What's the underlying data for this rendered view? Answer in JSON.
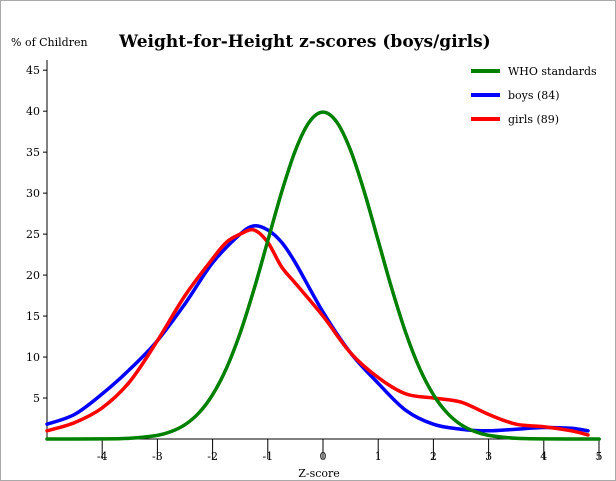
{
  "chart_data": {
    "type": "line",
    "title": "Weight-for-Height z-scores (boys/girls)",
    "ylabel": "% of Children",
    "xlabel": "Z-score",
    "xlim": [
      -5,
      5
    ],
    "ylim": [
      0,
      46
    ],
    "x_ticks": [
      -4,
      -3,
      -2,
      -1,
      0,
      1,
      2,
      3,
      4,
      5
    ],
    "y_ticks": [
      5,
      10,
      15,
      20,
      25,
      30,
      35,
      40,
      45
    ],
    "grid": false,
    "legend_position": "top-right",
    "series": [
      {
        "name": "WHO standards",
        "color": "#008000",
        "x": [
          -5,
          -4,
          -3.5,
          -3,
          -2.75,
          -2.5,
          -2.25,
          -2,
          -1.75,
          -1.5,
          -1.25,
          -1,
          -0.75,
          -0.5,
          -0.25,
          0,
          0.25,
          0.5,
          0.75,
          1,
          1.25,
          1.5,
          1.75,
          2,
          2.25,
          2.5,
          2.75,
          3,
          3.5,
          4,
          5
        ],
        "y": [
          0,
          0.01,
          0.09,
          0.44,
          0.91,
          1.75,
          3.17,
          5.4,
          8.63,
          12.95,
          18.26,
          24.2,
          30.11,
          35.21,
          38.67,
          39.89,
          38.67,
          35.21,
          30.11,
          24.2,
          18.26,
          12.95,
          8.63,
          5.4,
          3.17,
          1.75,
          0.91,
          0.44,
          0.09,
          0.01,
          0
        ]
      },
      {
        "name": "boys (84)",
        "color": "#0000ff",
        "x": [
          -5,
          -4.5,
          -4,
          -3.5,
          -3,
          -2.5,
          -2,
          -1.5,
          -1.25,
          -1,
          -0.75,
          -0.5,
          0,
          0.5,
          1,
          1.5,
          2,
          2.5,
          3,
          3.5,
          4,
          4.5,
          4.8
        ],
        "y": [
          1.8,
          3,
          5.5,
          8.5,
          12,
          16.5,
          21.5,
          25,
          26,
          25.5,
          24,
          21.5,
          15.5,
          10.5,
          6.8,
          3.5,
          1.8,
          1.2,
          1,
          1.2,
          1.4,
          1.3,
          1
        ]
      },
      {
        "name": "girls (89)",
        "color": "#ff0000",
        "x": [
          -5,
          -4.5,
          -4,
          -3.5,
          -3,
          -2.5,
          -2,
          -1.75,
          -1.5,
          -1.25,
          -1,
          -0.75,
          -0.5,
          0,
          0.5,
          1,
          1.5,
          2,
          2.5,
          3,
          3.5,
          4,
          4.5,
          4.8
        ],
        "y": [
          1,
          2,
          3.8,
          7,
          12,
          17.5,
          22,
          24,
          25,
          25.5,
          24,
          21,
          19,
          15,
          10.5,
          7.5,
          5.5,
          5,
          4.5,
          3,
          1.8,
          1.5,
          1,
          0.5
        ]
      }
    ]
  }
}
